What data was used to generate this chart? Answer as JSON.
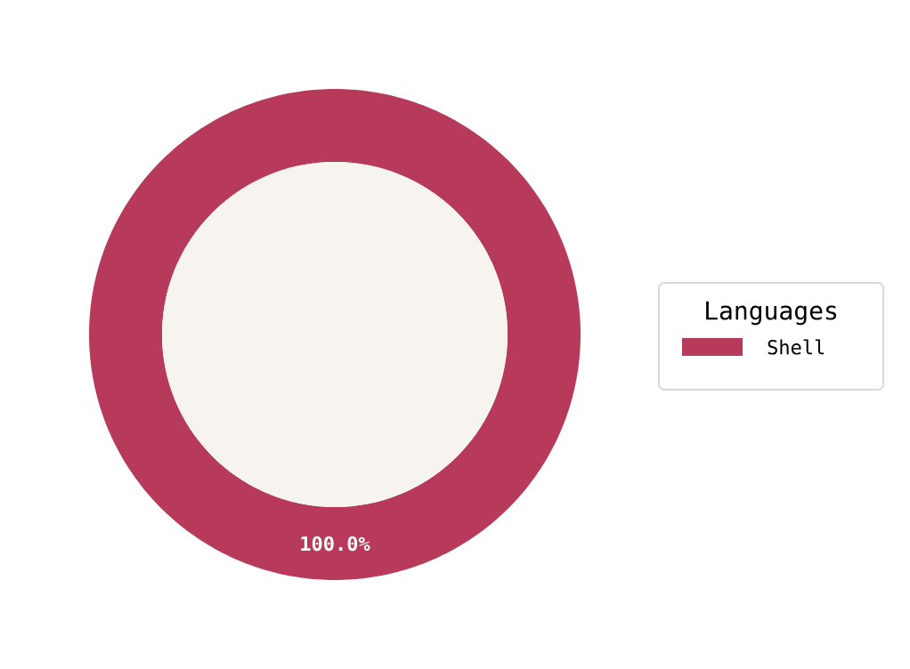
{
  "chart_data": {
    "type": "donut",
    "legend_title": "Languages",
    "categories": [
      "Shell"
    ],
    "values": [
      100
    ],
    "colors": [
      "#b73a5a"
    ],
    "value_labels": [
      "100.0%"
    ],
    "legend": "right"
  }
}
